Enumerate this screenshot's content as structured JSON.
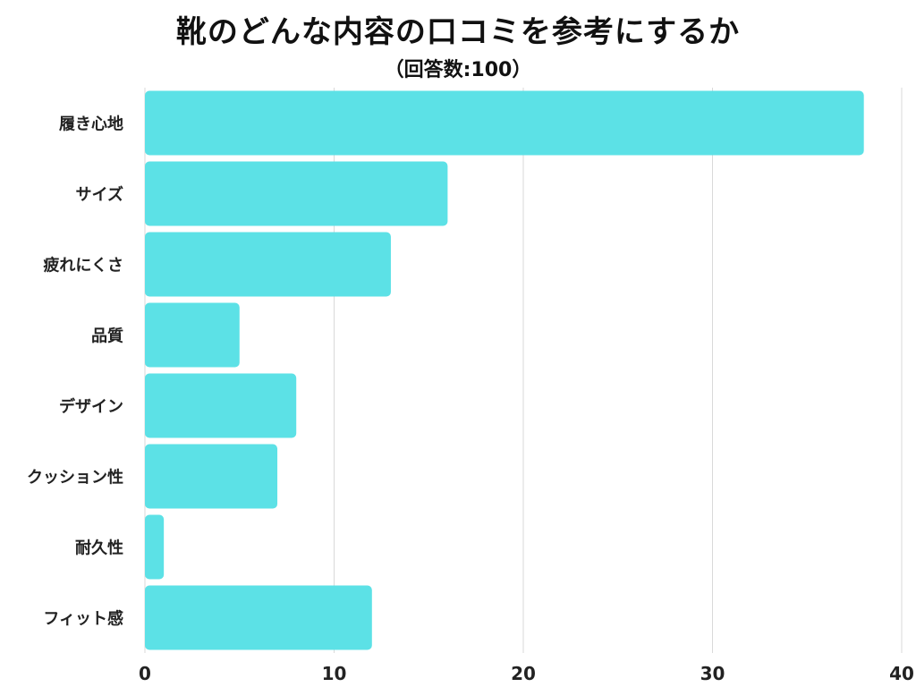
{
  "title": "靴のどんな内容の口コミを参考にするか",
  "subtitle": "（回答数:100）",
  "bar_color": "#5ce1e6",
  "chart_data": {
    "type": "bar",
    "orientation": "horizontal",
    "categories": [
      "履き心地",
      "サイズ",
      "疲れにくさ",
      "品質",
      "デザイン",
      "クッション性",
      "耐久性",
      "フィット感"
    ],
    "values": [
      38,
      16,
      13,
      5,
      8,
      7,
      1,
      12
    ],
    "xlim": [
      0,
      40
    ],
    "xticks": [
      "0",
      "10",
      "20",
      "30",
      "40"
    ],
    "grid": "vertical"
  }
}
